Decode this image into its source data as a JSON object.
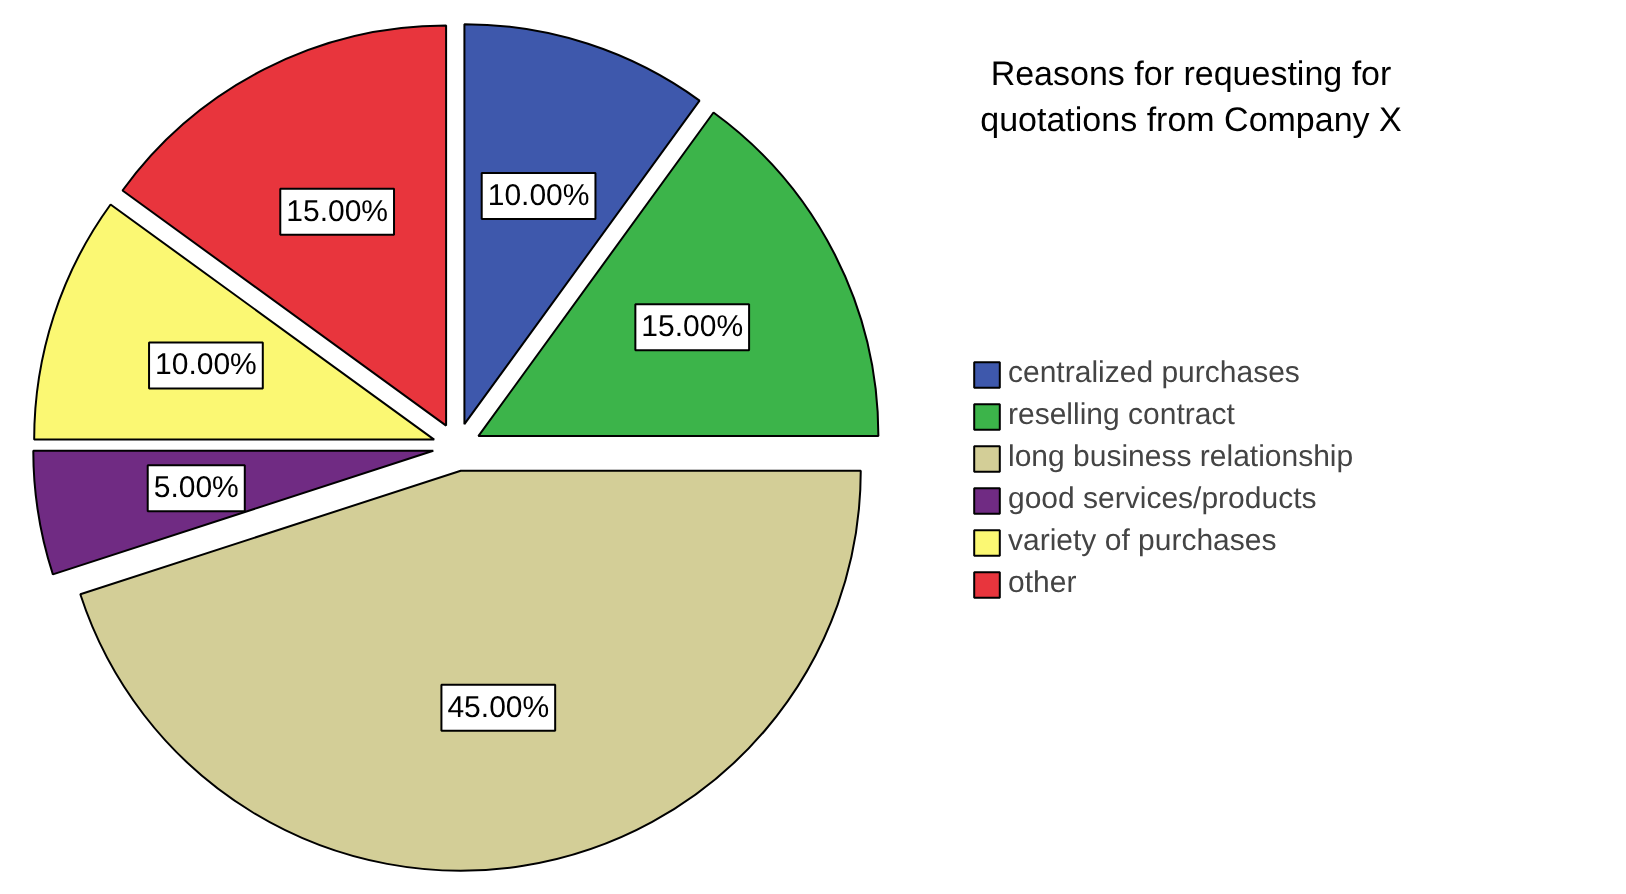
{
  "chart_data": {
    "type": "pie",
    "legend_title": "Reasons for requesting for quotations from Company X",
    "categories": [
      "centralized purchases",
      "reselling contract",
      "long business relationship",
      "good services/products",
      "variety of purchases",
      "other"
    ],
    "values": [
      10,
      15,
      45,
      5,
      10,
      15
    ],
    "colors": [
      "#3e58ac",
      "#3cb44a",
      "#d3ce97",
      "#702b83",
      "#fbf873",
      "#e8353d"
    ],
    "value_labels": [
      "10.00%",
      "15.00%",
      "45.00%",
      "5.00%",
      "10.00%",
      "15.00%"
    ],
    "legend": "right"
  }
}
